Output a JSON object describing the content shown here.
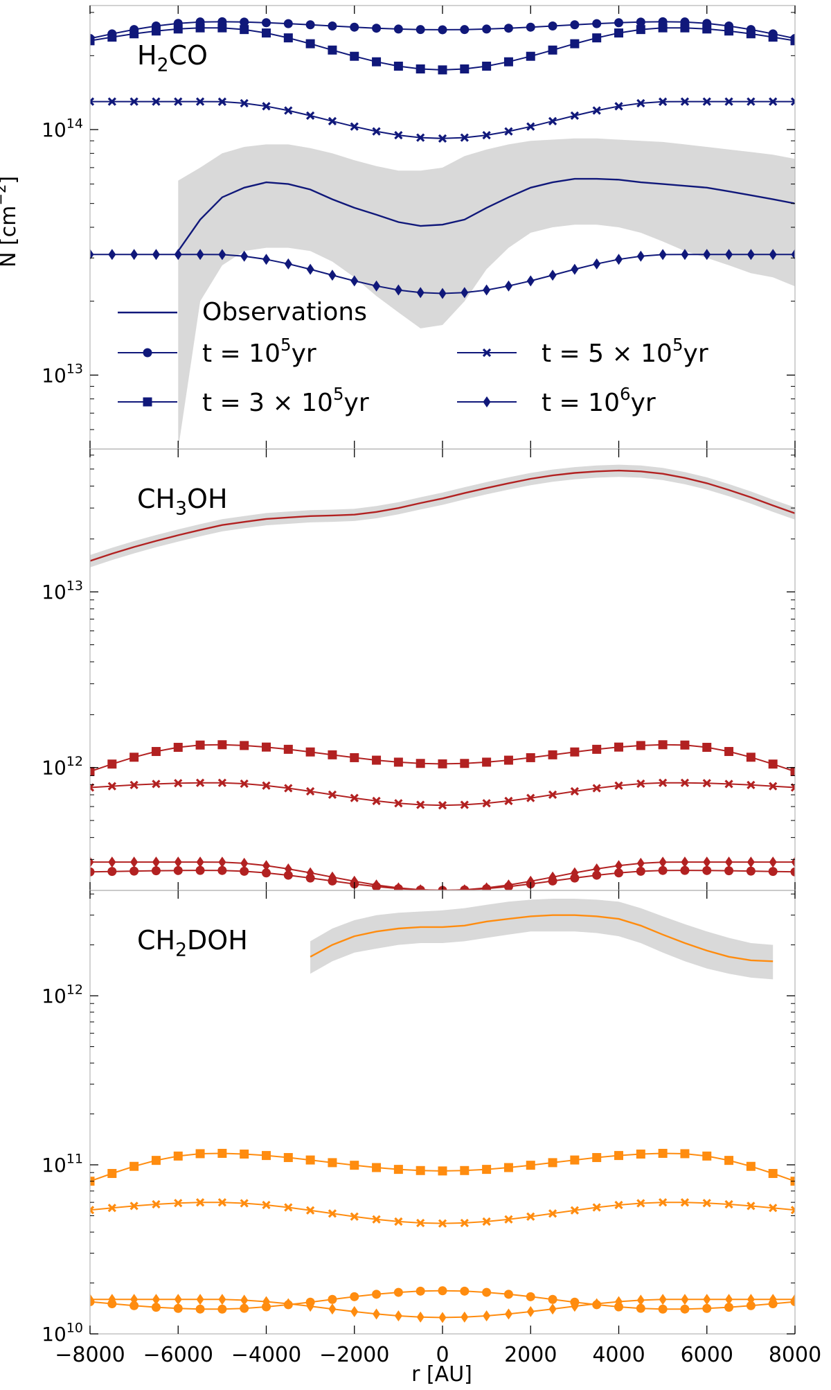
{
  "chart_data": [
    {
      "type": "line",
      "molecule": {
        "base": "H",
        "sub": "2",
        "rest": "CO"
      },
      "yscale": "log",
      "ylim": [
        5000000000000.0,
        320000000000000.0
      ],
      "xlim": [
        -8000,
        8000
      ],
      "color": "#10187a",
      "yticks": [
        {
          "value": 10000000000000.0,
          "base": "10",
          "exp": "13"
        },
        {
          "value": 100000000000000.0,
          "base": "10",
          "exp": "14"
        }
      ],
      "observations": {
        "x": [
          -6000,
          -5500,
          -5000,
          -4500,
          -4000,
          -3500,
          -3000,
          -2500,
          -2000,
          -1500,
          -1000,
          -500,
          0,
          500,
          1000,
          1500,
          2000,
          2500,
          3000,
          3500,
          4000,
          4500,
          5000,
          5500,
          6000,
          6500,
          7000,
          7500,
          8000
        ],
        "y": [
          32000000000000.0,
          43000000000000.0,
          53000000000000.0,
          58000000000000.0,
          61000000000000.0,
          60000000000000.0,
          57000000000000.0,
          52000000000000.0,
          48000000000000.0,
          45000000000000.0,
          42000000000000.0,
          40500000000000.0,
          41000000000000.0,
          43000000000000.0,
          48000000000000.0,
          53000000000000.0,
          58000000000000.0,
          61000000000000.0,
          63000000000000.0,
          63000000000000.0,
          62500000000000.0,
          61000000000000.0,
          60000000000000.0,
          59000000000000.0,
          58000000000000.0,
          56000000000000.0,
          54000000000000.0,
          52000000000000.0,
          50000000000000.0
        ],
        "lower": [
          5000000000000.0,
          20000000000000.0,
          28000000000000.0,
          32000000000000.0,
          33000000000000.0,
          33000000000000.0,
          32000000000000.0,
          29000000000000.0,
          25000000000000.0,
          21000000000000.0,
          18000000000000.0,
          15500000000000.0,
          16000000000000.0,
          20000000000000.0,
          27000000000000.0,
          33000000000000.0,
          38000000000000.0,
          40000000000000.0,
          41000000000000.0,
          41000000000000.0,
          40000000000000.0,
          38000000000000.0,
          35000000000000.0,
          32000000000000.0,
          30000000000000.0,
          28000000000000.0,
          26000000000000.0,
          25000000000000.0,
          23000000000000.0
        ],
        "upper": [
          62000000000000.0,
          70000000000000.0,
          80000000000000.0,
          85000000000000.0,
          87000000000000.0,
          87000000000000.0,
          84000000000000.0,
          80000000000000.0,
          75000000000000.0,
          71000000000000.0,
          68000000000000.0,
          68000000000000.0,
          70000000000000.0,
          78000000000000.0,
          83000000000000.0,
          87000000000000.0,
          90000000000000.0,
          91000000000000.0,
          92000000000000.0,
          92000000000000.0,
          91000000000000.0,
          90000000000000.0,
          89000000000000.0,
          87000000000000.0,
          85000000000000.0,
          83000000000000.0,
          81000000000000.0,
          79000000000000.0,
          76000000000000.0
        ]
      },
      "models": {
        "t1e5": {
          "edge": 235000000000000.0,
          "peak": 275000000000000.0,
          "center": 255000000000000.0
        },
        "t3e5": {
          "edge": 230000000000000.0,
          "peak": 260000000000000.0,
          "center": 175000000000000.0
        },
        "t5e5": {
          "edge": 130000000000000.0,
          "peak": 130000000000000.0,
          "center": 92000000000000.0
        },
        "t1e6": {
          "edge": 31000000000000.0,
          "peak": 31000000000000.0,
          "center": 21500000000000.0
        }
      },
      "legend": {
        "observations": "Observations",
        "entries": [
          {
            "key": "t1e5",
            "marker": "circle",
            "pre": "t = 10",
            "exp": "5",
            "post": "yr"
          },
          {
            "key": "t3e5",
            "marker": "square",
            "pre": "t = 3 × 10",
            "exp": "5",
            "post": "yr"
          },
          {
            "key": "t5e5",
            "marker": "x",
            "pre": "t = 5 × 10",
            "exp": "5",
            "post": "yr"
          },
          {
            "key": "t1e6",
            "marker": "diamond",
            "pre": "t = 10",
            "exp": "6",
            "post": "yr"
          }
        ]
      }
    },
    {
      "type": "line",
      "molecule": {
        "base": "CH",
        "sub": "3",
        "rest": "OH"
      },
      "yscale": "log",
      "ylim": [
        200000000000.0,
        65000000000000.0
      ],
      "xlim": [
        -8000,
        8000
      ],
      "color": "#b22121",
      "yticks": [
        {
          "value": 1000000000000.0,
          "base": "10",
          "exp": "12"
        },
        {
          "value": 10000000000000.0,
          "base": "10",
          "exp": "13"
        }
      ],
      "observations": {
        "x": [
          -8000,
          -7500,
          -7000,
          -6500,
          -6000,
          -5500,
          -5000,
          -4500,
          -4000,
          -3500,
          -3000,
          -2500,
          -2000,
          -1500,
          -1000,
          -500,
          0,
          500,
          1000,
          1500,
          2000,
          2500,
          3000,
          3500,
          4000,
          4500,
          5000,
          5500,
          6000,
          6500,
          7000,
          7500,
          8000
        ],
        "y": [
          15000000000000.0,
          16500000000000.0,
          18000000000000.0,
          19500000000000.0,
          21000000000000.0,
          22500000000000.0,
          24000000000000.0,
          25000000000000.0,
          26000000000000.0,
          26500000000000.0,
          27000000000000.0,
          27200000000000.0,
          27500000000000.0,
          28500000000000.0,
          30000000000000.0,
          32000000000000.0,
          34000000000000.0,
          36500000000000.0,
          39000000000000.0,
          41500000000000.0,
          44000000000000.0,
          46000000000000.0,
          47500000000000.0,
          48500000000000.0,
          49000000000000.0,
          48500000000000.0,
          47000000000000.0,
          44500000000000.0,
          41500000000000.0,
          38000000000000.0,
          34500000000000.0,
          31000000000000.0,
          28000000000000.0
        ],
        "rel_error": 0.08
      },
      "models": {
        "t1e5": {
          "edge": 255000000000.0,
          "peak": 260000000000.0,
          "center": 200000000000.0
        },
        "t3e5": {
          "edge": 950000000000.0,
          "peak": 1350000000000.0,
          "center": 1050000000000.0
        },
        "t5e5": {
          "edge": 770000000000.0,
          "peak": 820000000000.0,
          "center": 610000000000.0
        },
        "t1e6": {
          "edge": 290000000000.0,
          "peak": 290000000000.0,
          "center": 200000000000.0
        }
      }
    },
    {
      "type": "line",
      "molecule": {
        "base": "CH",
        "sub": "2",
        "rest": "DOH"
      },
      "yscale": "log",
      "ylim": [
        10000000000.0,
        4200000000000.0
      ],
      "xlim": [
        -8000,
        8000
      ],
      "color": "#ff8c0f",
      "xlabel": "r [AU]",
      "xticks": [
        {
          "value": -8000,
          "label": "−8000"
        },
        {
          "value": -6000,
          "label": "−6000"
        },
        {
          "value": -4000,
          "label": "−4000"
        },
        {
          "value": -2000,
          "label": "−2000"
        },
        {
          "value": 0,
          "label": "0"
        },
        {
          "value": 2000,
          "label": "2000"
        },
        {
          "value": 4000,
          "label": "4000"
        },
        {
          "value": 6000,
          "label": "6000"
        },
        {
          "value": 8000,
          "label": "8000"
        }
      ],
      "yticks": [
        {
          "value": 10000000000.0,
          "base": "10",
          "exp": "10"
        },
        {
          "value": 100000000000.0,
          "base": "10",
          "exp": "11"
        },
        {
          "value": 1000000000000.0,
          "base": "10",
          "exp": "12"
        }
      ],
      "observations": {
        "x": [
          -3000,
          -2500,
          -2000,
          -1500,
          -1000,
          -500,
          0,
          500,
          1000,
          1500,
          2000,
          2500,
          3000,
          3500,
          4000,
          4500,
          5000,
          5500,
          6000,
          6500,
          7000,
          7500
        ],
        "y": [
          1700000000000.0,
          2000000000000.0,
          2250000000000.0,
          2400000000000.0,
          2500000000000.0,
          2550000000000.0,
          2550000000000.0,
          2600000000000.0,
          2750000000000.0,
          2850000000000.0,
          2950000000000.0,
          3000000000000.0,
          3000000000000.0,
          2950000000000.0,
          2850000000000.0,
          2600000000000.0,
          2300000000000.0,
          2050000000000.0,
          1850000000000.0,
          1700000000000.0,
          1620000000000.0,
          1600000000000.0
        ],
        "lower": [
          1350000000000.0,
          1600000000000.0,
          1800000000000.0,
          1900000000000.0,
          2000000000000.0,
          2050000000000.0,
          2050000000000.0,
          2100000000000.0,
          2200000000000.0,
          2300000000000.0,
          2400000000000.0,
          2400000000000.0,
          2400000000000.0,
          2350000000000.0,
          2250000000000.0,
          2050000000000.0,
          1800000000000.0,
          1600000000000.0,
          1450000000000.0,
          1350000000000.0,
          1280000000000.0,
          1250000000000.0
        ],
        "upper": [
          2100000000000.0,
          2500000000000.0,
          2800000000000.0,
          3000000000000.0,
          3100000000000.0,
          3150000000000.0,
          3200000000000.0,
          3300000000000.0,
          3450000000000.0,
          3600000000000.0,
          3700000000000.0,
          3750000000000.0,
          3750000000000.0,
          3700000000000.0,
          3600000000000.0,
          3300000000000.0,
          2950000000000.0,
          2650000000000.0,
          2400000000000.0,
          2200000000000.0,
          2050000000000.0,
          2000000000000.0
        ]
      },
      "models": {
        "t1e5": {
          "edge": 15500000000.0,
          "peak": 14000000000.0,
          "center": 18000000000.0
        },
        "t3e5": {
          "edge": 80000000000.0,
          "peak": 117000000000.0,
          "center": 92000000000.0
        },
        "t5e5": {
          "edge": 54000000000.0,
          "peak": 60000000000.0,
          "center": 45000000000.0
        },
        "t1e6": {
          "edge": 16000000000.0,
          "peak": 16000000000.0,
          "center": 12500000000.0
        }
      }
    }
  ],
  "ylabel": {
    "pre": "N [cm",
    "exp": "−2",
    "post": "]"
  }
}
